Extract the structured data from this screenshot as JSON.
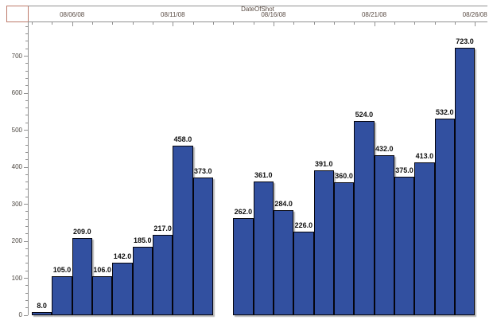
{
  "chart_data": {
    "type": "bar",
    "title": "",
    "x_axis": {
      "title": "DateOfShot",
      "tick_labels": [
        "08/06/08",
        "08/11/08",
        "08/16/08",
        "08/21/08",
        "08/26/08"
      ],
      "labeled_tick_slots": [
        2,
        7,
        12,
        17,
        22
      ],
      "total_day_slots": 22,
      "minor_tick": "daily"
    },
    "y_axis": {
      "tick_labels": [
        "0",
        "100",
        "200",
        "300",
        "400",
        "500",
        "600",
        "700"
      ],
      "range": [
        0,
        790
      ],
      "major_interval": 100,
      "minor_interval": 20
    },
    "bars": [
      {
        "slot": 0,
        "date": "08/04/08",
        "value": 8,
        "label": "8.0"
      },
      {
        "slot": 1,
        "date": "08/05/08",
        "value": 105,
        "label": "105.0"
      },
      {
        "slot": 2,
        "date": "08/06/08",
        "value": 209,
        "label": "209.0"
      },
      {
        "slot": 3,
        "date": "08/07/08",
        "value": 106,
        "label": "106.0"
      },
      {
        "slot": 4,
        "date": "08/08/08",
        "value": 142,
        "label": "142.0"
      },
      {
        "slot": 5,
        "date": "08/09/08",
        "value": 185,
        "label": "185.0"
      },
      {
        "slot": 6,
        "date": "08/10/08",
        "value": 217,
        "label": "217.0"
      },
      {
        "slot": 7,
        "date": "08/11/08",
        "value": 458,
        "label": "458.0"
      },
      {
        "slot": 8,
        "date": "08/12/08",
        "value": 373,
        "label": "373.0"
      },
      {
        "slot": 10,
        "date": "08/14/08",
        "value": 262,
        "label": "262.0"
      },
      {
        "slot": 11,
        "date": "08/15/08",
        "value": 361,
        "label": "361.0"
      },
      {
        "slot": 12,
        "date": "08/16/08",
        "value": 284,
        "label": "284.0"
      },
      {
        "slot": 13,
        "date": "08/17/08",
        "value": 226,
        "label": "226.0"
      },
      {
        "slot": 14,
        "date": "08/18/08",
        "value": 391,
        "label": "391.0"
      },
      {
        "slot": 15,
        "date": "08/19/08",
        "value": 360,
        "label": "360.0"
      },
      {
        "slot": 16,
        "date": "08/20/08",
        "value": 524,
        "label": "524.0"
      },
      {
        "slot": 17,
        "date": "08/21/08",
        "value": 432,
        "label": "432.0"
      },
      {
        "slot": 18,
        "date": "08/22/08",
        "value": 375,
        "label": "375.0"
      },
      {
        "slot": 19,
        "date": "08/23/08",
        "value": 413,
        "label": "413.0"
      },
      {
        "slot": 20,
        "date": "08/24/08",
        "value": 532,
        "label": "532.0"
      },
      {
        "slot": 21,
        "date": "08/25/08",
        "value": 723,
        "label": "723.0"
      }
    ],
    "missing_slots": [
      9
    ],
    "legend": "none",
    "grid": "off",
    "colors": {
      "bar_fill": "#3250a0",
      "bar_border": "#05050e",
      "axis_line": "#909090",
      "corner_box": "#bd7a6a",
      "x_tick_label": "#5a4c44",
      "y_tick_label": "#4c4741",
      "value_label": "#101010"
    }
  }
}
